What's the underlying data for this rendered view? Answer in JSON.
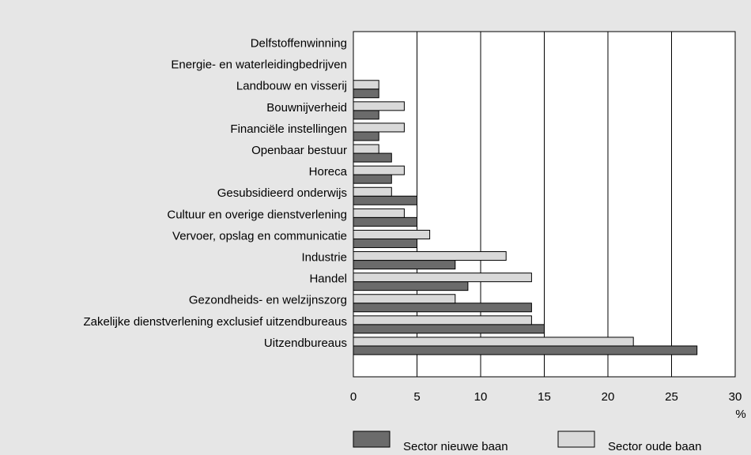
{
  "chart_data": {
    "type": "barh",
    "categories": [
      "Delfstoffenwinning",
      "Energie- en waterleidingbedrijven",
      "Landbouw en visserij",
      "Bouwnijverheid",
      "Financiële instellingen",
      "Openbaar bestuur",
      "Horeca",
      "Gesubsidieerd onderwijs",
      "Cultuur en overige dienstverlening",
      "Vervoer, opslag en communicatie",
      "Industrie",
      "Handel",
      "Gezondheids- en welzijnszorg",
      "Zakelijke dienstverlening exclusief uitzendbureaus",
      "Uitzendbureaus"
    ],
    "series": [
      {
        "name": "Sector nieuwe baan",
        "color": "#6b6b6b",
        "values": [
          0,
          0,
          2,
          2,
          2,
          3,
          3,
          5,
          5,
          5,
          8,
          9,
          14,
          15,
          27
        ]
      },
      {
        "name": "Sector oude baan",
        "color": "#d9d9d9",
        "values": [
          0,
          0,
          2,
          4,
          4,
          2,
          4,
          3,
          4,
          6,
          12,
          14,
          8,
          14,
          22
        ]
      }
    ],
    "x_label": "%",
    "xlim": [
      0,
      30
    ],
    "xticks": [
      0,
      5,
      10,
      15,
      20,
      25,
      30
    ],
    "grid": true,
    "legend": "bottom"
  }
}
